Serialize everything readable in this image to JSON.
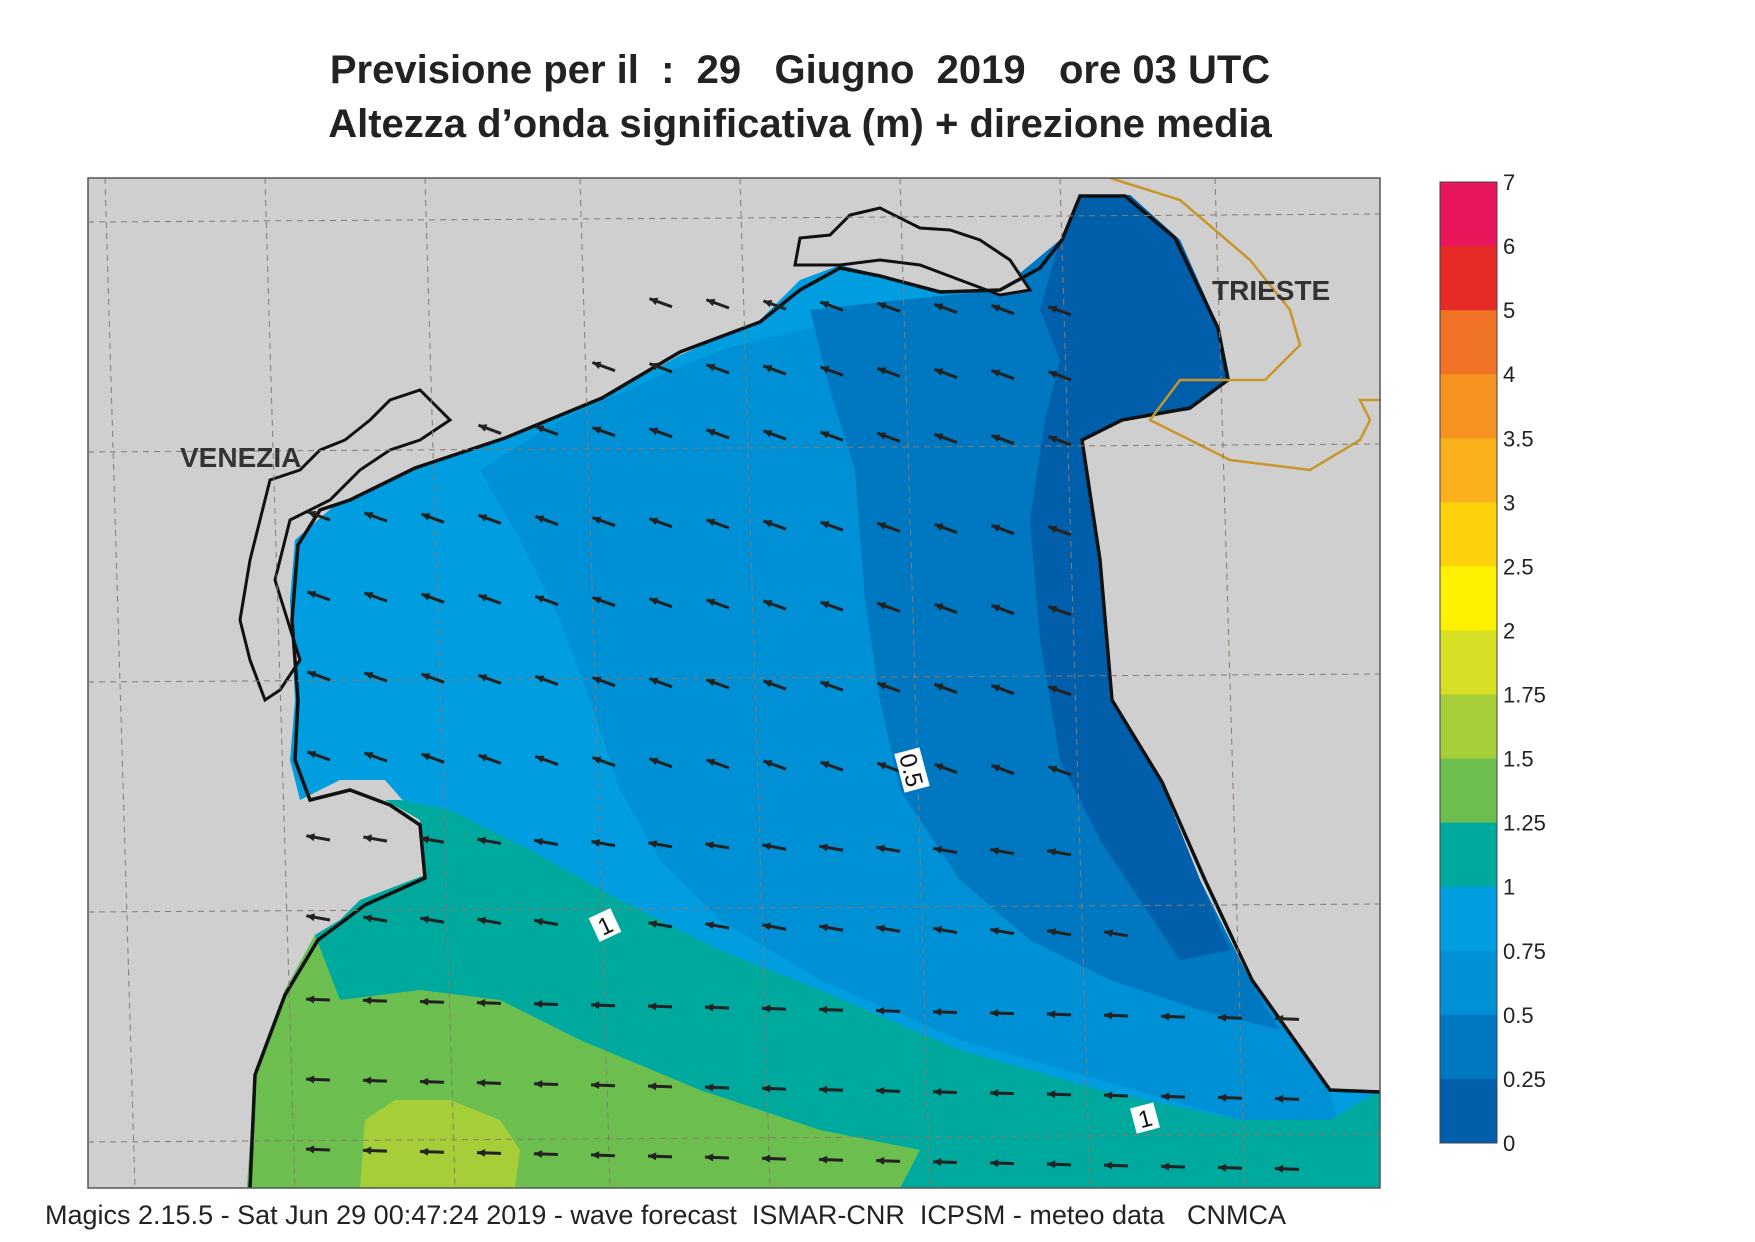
{
  "title": {
    "line1": "Previsione per il  :  29   Giugno  2019   ore 03 UTC",
    "line2": "Altezza d’onda significativa (m) + direzione media"
  },
  "map": {
    "cities": [
      "VENEZIA",
      "TRIESTE"
    ],
    "contour_labels": [
      "0.5",
      "1",
      "1"
    ],
    "land_color": "#cfcfcf",
    "coast_color": "#111111",
    "border_color": "#c8962a",
    "arrow_direction": "west-northwest"
  },
  "legend": {
    "ticks": [
      "7",
      "6",
      "5",
      "4",
      "3.5",
      "3",
      "2.5",
      "2",
      "1.75",
      "1.5",
      "1.25",
      "1",
      "0.75",
      "0.5",
      "0.25",
      "0"
    ],
    "colors": [
      "#e8165a",
      "#e52a28",
      "#f07225",
      "#f6921f",
      "#fab11b",
      "#fdd20a",
      "#fff200",
      "#d6df23",
      "#a6ce39",
      "#6cbf4f",
      "#00a99d",
      "#009ee0",
      "#0090d6",
      "#0078c1",
      "#005eab"
    ]
  },
  "footer": "Magics 2.15.5 - Sat Jun 29 00:47:24 2019 - wave forecast  ISMAR-CNR  ICPSM - meteo data   CNMCA"
}
